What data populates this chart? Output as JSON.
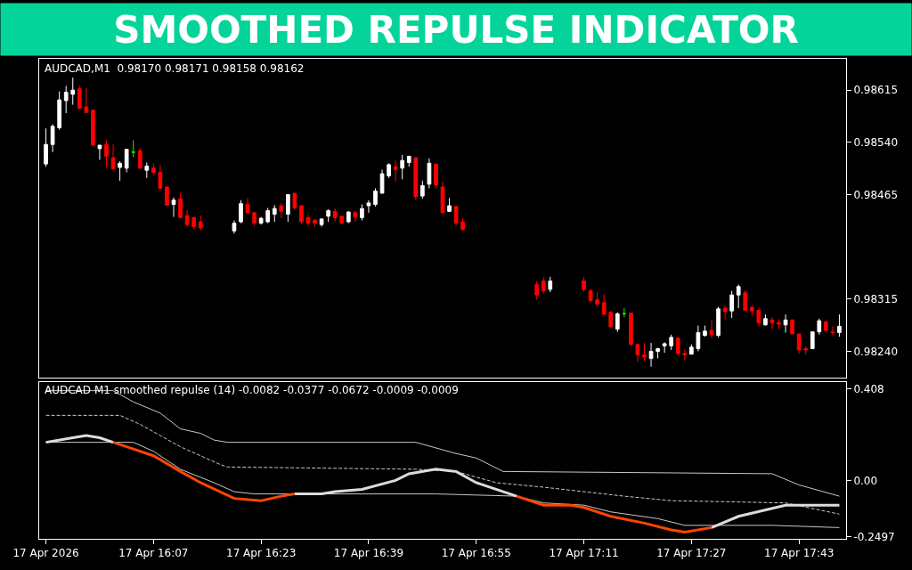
{
  "chart_data": [
    {
      "type": "candlestick",
      "title": "SMOOTHED REPULSE INDICATOR",
      "annotations": [
        "AUDCAD,M1  0.98170 0.98171 0.98158 0.98162"
      ],
      "x": [
        "2026-04-17T15:51",
        "2026-04-17T15:52",
        "2026-04-17T15:53",
        "2026-04-17T15:54",
        "2026-04-17T15:55",
        "2026-04-17T15:56",
        "2026-04-17T15:57",
        "2026-04-17T15:58",
        "2026-04-17T15:59",
        "2026-04-17T16:00",
        "2026-04-17T16:01",
        "2026-04-17T16:02",
        "2026-04-17T16:03",
        "2026-04-17T16:04",
        "2026-04-17T16:05",
        "2026-04-17T16:06",
        "2026-04-17T16:07",
        "2026-04-17T16:08",
        "2026-04-17T16:09",
        "2026-04-17T16:10",
        "2026-04-17T16:11",
        "2026-04-17T16:12",
        "2026-04-17T16:13",
        "2026-04-17T16:14",
        "2026-04-17T16:19",
        "2026-04-17T16:20",
        "2026-04-17T16:21",
        "2026-04-17T16:22",
        "2026-04-17T16:23",
        "2026-04-17T16:24",
        "2026-04-17T16:25",
        "2026-04-17T16:26",
        "2026-04-17T16:27",
        "2026-04-17T16:28",
        "2026-04-17T16:29",
        "2026-04-17T16:30",
        "2026-04-17T16:31",
        "2026-04-17T16:32",
        "2026-04-17T16:33",
        "2026-04-17T16:34",
        "2026-04-17T16:35",
        "2026-04-17T16:36",
        "2026-04-17T16:37",
        "2026-04-17T16:38",
        "2026-04-17T16:39",
        "2026-04-17T16:40",
        "2026-04-17T16:41",
        "2026-04-17T16:42",
        "2026-04-17T16:43",
        "2026-04-17T16:44",
        "2026-04-17T16:45",
        "2026-04-17T16:46",
        "2026-04-17T16:47",
        "2026-04-17T16:48",
        "2026-04-17T16:49",
        "2026-04-17T16:50",
        "2026-04-17T16:51",
        "2026-04-17T16:52",
        "2026-04-17T16:53",
        "2026-04-17T17:04",
        "2026-04-17T17:05",
        "2026-04-17T17:06",
        "2026-04-17T17:11",
        "2026-04-17T17:12",
        "2026-04-17T17:13",
        "2026-04-17T17:14",
        "2026-04-17T17:15",
        "2026-04-17T17:16",
        "2026-04-17T17:17",
        "2026-04-17T17:18",
        "2026-04-17T17:19",
        "2026-04-17T17:20",
        "2026-04-17T17:21",
        "2026-04-17T17:22",
        "2026-04-17T17:23",
        "2026-04-17T17:24",
        "2026-04-17T17:25",
        "2026-04-17T17:26",
        "2026-04-17T17:27",
        "2026-04-17T17:28",
        "2026-04-17T17:29",
        "2026-04-17T17:30",
        "2026-04-17T17:31",
        "2026-04-17T17:32",
        "2026-04-17T17:33",
        "2026-04-17T17:34",
        "2026-04-17T17:35",
        "2026-04-17T17:36",
        "2026-04-17T17:37",
        "2026-04-17T17:38",
        "2026-04-17T17:39",
        "2026-04-17T17:40",
        "2026-04-17T17:41",
        "2026-04-17T17:42",
        "2026-04-17T17:43",
        "2026-04-17T17:44",
        "2026-04-17T17:45",
        "2026-04-17T17:46",
        "2026-04-17T17:47",
        "2026-04-17T17:48",
        "2026-04-17T17:49"
      ],
      "ohlc": [
        [
          0.98509,
          0.9856,
          0.98505,
          0.98537
        ],
        [
          0.98537,
          0.98566,
          0.98526,
          0.98563
        ],
        [
          0.98561,
          0.98613,
          0.98558,
          0.98601
        ],
        [
          0.986,
          0.98621,
          0.98582,
          0.98612
        ],
        [
          0.98609,
          0.98633,
          0.98594,
          0.98615
        ],
        [
          0.98617,
          0.98621,
          0.98588,
          0.98589
        ],
        [
          0.98591,
          0.98618,
          0.98583,
          0.98583
        ],
        [
          0.98586,
          0.98588,
          0.98536,
          0.98536
        ],
        [
          0.98531,
          0.98536,
          0.98515,
          0.98536
        ],
        [
          0.98537,
          0.98543,
          0.98504,
          0.9852
        ],
        [
          0.98518,
          0.98537,
          0.98502,
          0.98502
        ],
        [
          0.98504,
          0.98513,
          0.98485,
          0.9851
        ],
        [
          0.98503,
          0.9853,
          0.98497,
          0.9853
        ],
        [
          0.98526,
          0.98543,
          0.98519,
          0.98526
        ],
        [
          0.98528,
          0.98532,
          0.98502,
          0.98503
        ],
        [
          0.985,
          0.98511,
          0.98489,
          0.98506
        ],
        [
          0.98503,
          0.9851,
          0.98493,
          0.98497
        ],
        [
          0.98497,
          0.98508,
          0.98474,
          0.98474
        ],
        [
          0.98476,
          0.98476,
          0.9845,
          0.9845
        ],
        [
          0.98451,
          0.98461,
          0.98433,
          0.98457
        ],
        [
          0.98459,
          0.98468,
          0.98432,
          0.98432
        ],
        [
          0.98435,
          0.98443,
          0.98419,
          0.98422
        ],
        [
          0.98432,
          0.98434,
          0.98415,
          0.98419
        ],
        [
          0.98426,
          0.98435,
          0.98413,
          0.98417
        ],
        [
          0.98413,
          0.98428,
          0.98409,
          0.98424
        ],
        [
          0.98426,
          0.98457,
          0.98424,
          0.98452
        ],
        [
          0.98451,
          0.9846,
          0.98437,
          0.98439
        ],
        [
          0.98439,
          0.98439,
          0.9842,
          0.98424
        ],
        [
          0.98424,
          0.98433,
          0.98422,
          0.98431
        ],
        [
          0.98426,
          0.98446,
          0.98424,
          0.98442
        ],
        [
          0.98437,
          0.9845,
          0.98426,
          0.98445
        ],
        [
          0.98449,
          0.98453,
          0.98431,
          0.98441
        ],
        [
          0.98437,
          0.98465,
          0.98426,
          0.98465
        ],
        [
          0.98467,
          0.98467,
          0.98443,
          0.98446
        ],
        [
          0.98449,
          0.9845,
          0.98423,
          0.98426
        ],
        [
          0.98432,
          0.98436,
          0.9842,
          0.98424
        ],
        [
          0.98428,
          0.9843,
          0.98419,
          0.98424
        ],
        [
          0.98422,
          0.98431,
          0.98419,
          0.9843
        ],
        [
          0.98434,
          0.98444,
          0.98426,
          0.98442
        ],
        [
          0.98441,
          0.98446,
          0.98426,
          0.98432
        ],
        [
          0.98434,
          0.98434,
          0.98422,
          0.98424
        ],
        [
          0.98426,
          0.98441,
          0.98424,
          0.9844
        ],
        [
          0.98439,
          0.98442,
          0.98426,
          0.98433
        ],
        [
          0.98432,
          0.98451,
          0.98428,
          0.98445
        ],
        [
          0.98449,
          0.98457,
          0.98439,
          0.98453
        ],
        [
          0.98451,
          0.98474,
          0.98448,
          0.9847
        ],
        [
          0.98467,
          0.98501,
          0.98467,
          0.98495
        ],
        [
          0.98492,
          0.9851,
          0.98489,
          0.98508
        ],
        [
          0.98505,
          0.98514,
          0.98484,
          0.98501
        ],
        [
          0.98503,
          0.98522,
          0.98487,
          0.98514
        ],
        [
          0.98511,
          0.98521,
          0.98505,
          0.9852
        ],
        [
          0.98518,
          0.98518,
          0.98457,
          0.98462
        ],
        [
          0.98463,
          0.98485,
          0.98459,
          0.98478
        ],
        [
          0.9848,
          0.98517,
          0.98474,
          0.9851
        ],
        [
          0.98509,
          0.98509,
          0.98474,
          0.98479
        ],
        [
          0.98476,
          0.98484,
          0.98439,
          0.98439
        ],
        [
          0.98441,
          0.9846,
          0.9844,
          0.98449
        ],
        [
          0.98448,
          0.98448,
          0.9842,
          0.98424
        ],
        [
          0.98426,
          0.98431,
          0.98413,
          0.98415
        ],
        [
          0.98336,
          0.98341,
          0.98314,
          0.98321
        ],
        [
          0.98341,
          0.98347,
          0.98323,
          0.98327
        ],
        [
          0.98329,
          0.98347,
          0.98325,
          0.98341
        ],
        [
          0.98341,
          0.98347,
          0.98325,
          0.98329
        ],
        [
          0.98327,
          0.9833,
          0.9831,
          0.98313
        ],
        [
          0.98314,
          0.98325,
          0.98305,
          0.98308
        ],
        [
          0.9831,
          0.98322,
          0.98293,
          0.98293
        ],
        [
          0.98296,
          0.98298,
          0.98275,
          0.98275
        ],
        [
          0.98272,
          0.98296,
          0.98268,
          0.98294
        ],
        [
          0.98294,
          0.98302,
          0.98289,
          0.98294
        ],
        [
          0.98295,
          0.98295,
          0.98248,
          0.9825
        ],
        [
          0.9825,
          0.9825,
          0.98225,
          0.98235
        ],
        [
          0.98235,
          0.98252,
          0.98226,
          0.98232
        ],
        [
          0.9823,
          0.98252,
          0.98218,
          0.9824
        ],
        [
          0.9824,
          0.98245,
          0.9823,
          0.98244
        ],
        [
          0.98248,
          0.98253,
          0.98238,
          0.98251
        ],
        [
          0.98248,
          0.98264,
          0.98242,
          0.9826
        ],
        [
          0.98259,
          0.9826,
          0.98235,
          0.98237
        ],
        [
          0.98237,
          0.98243,
          0.98227,
          0.98235
        ],
        [
          0.98236,
          0.9825,
          0.98236,
          0.98246
        ],
        [
          0.98244,
          0.98277,
          0.9824,
          0.98267
        ],
        [
          0.98263,
          0.98277,
          0.98261,
          0.98269
        ],
        [
          0.9827,
          0.98285,
          0.98259,
          0.98264
        ],
        [
          0.98263,
          0.98304,
          0.9826,
          0.98301
        ],
        [
          0.98302,
          0.98306,
          0.98286,
          0.98297
        ],
        [
          0.98298,
          0.98327,
          0.98288,
          0.98321
        ],
        [
          0.98321,
          0.98336,
          0.98302,
          0.98333
        ],
        [
          0.98324,
          0.98328,
          0.98298,
          0.98299
        ],
        [
          0.98303,
          0.98307,
          0.9829,
          0.98298
        ],
        [
          0.98299,
          0.98303,
          0.98276,
          0.98281
        ],
        [
          0.98278,
          0.98293,
          0.98277,
          0.98287
        ],
        [
          0.98285,
          0.98289,
          0.98272,
          0.98281
        ],
        [
          0.98281,
          0.98286,
          0.98272,
          0.98279
        ],
        [
          0.98278,
          0.98293,
          0.98267,
          0.98285
        ],
        [
          0.98285,
          0.98286,
          0.98265,
          0.98265
        ],
        [
          0.98265,
          0.98265,
          0.98237,
          0.98242
        ],
        [
          0.98244,
          0.98247,
          0.98236,
          0.98242
        ],
        [
          0.98244,
          0.98268,
          0.98243,
          0.98268
        ],
        [
          0.98268,
          0.98287,
          0.98264,
          0.98284
        ],
        [
          0.98282,
          0.98285,
          0.98269,
          0.9827
        ],
        [
          0.98268,
          0.98276,
          0.98264,
          0.98267
        ],
        [
          0.98267,
          0.98293,
          0.98261,
          0.98276
        ]
      ],
      "colors": [
        "#ffffff",
        "#ffffff",
        "#ffffff",
        "#ffffff",
        "#ffffff",
        "#ff0000",
        "#ff0000",
        "#ff0000",
        "#ffffff",
        "#ff0000",
        "#ff0000",
        "#ffffff",
        "#ffffff",
        "#00ff00",
        "#ff0000",
        "#ffffff",
        "#ff0000",
        "#ff0000",
        "#ff0000",
        "#ffffff",
        "#ff0000",
        "#ff0000",
        "#ff0000",
        "#ff0000",
        "#ffffff",
        "#ffffff",
        "#ff0000",
        "#ff0000",
        "#ffffff",
        "#ffffff",
        "#ffffff",
        "#ff0000",
        "#ffffff",
        "#ff0000",
        "#ff0000",
        "#ff0000",
        "#ff0000",
        "#ffffff",
        "#ffffff",
        "#ff0000",
        "#ff0000",
        "#ffffff",
        "#ff0000",
        "#ffffff",
        "#ffffff",
        "#ffffff",
        "#ffffff",
        "#ffffff",
        "#ff0000",
        "#ffffff",
        "#ffffff",
        "#ff0000",
        "#ffffff",
        "#ffffff",
        "#ff0000",
        "#ff0000",
        "#ffffff",
        "#ff0000",
        "#ff0000",
        "#ff0000",
        "#ff0000",
        "#ffffff",
        "#ff0000",
        "#ff0000",
        "#ff0000",
        "#ff0000",
        "#ff0000",
        "#ffffff",
        "#00ff00",
        "#ff0000",
        "#ff0000",
        "#ff0000",
        "#ffffff",
        "#ffffff",
        "#ffffff",
        "#ffffff",
        "#ff0000",
        "#ff0000",
        "#ffffff",
        "#ffffff",
        "#ffffff",
        "#ff0000",
        "#ffffff",
        "#ff0000",
        "#ffffff",
        "#ffffff",
        "#ff0000",
        "#ff0000",
        "#ff0000",
        "#ffffff",
        "#ff0000",
        "#ff0000",
        "#ffffff",
        "#ff0000",
        "#ff0000",
        "#ff0000",
        "#ffffff",
        "#ffffff",
        "#ff0000",
        "#ff0000",
        "#ffffff"
      ],
      "xlim": [
        "2026-04-17T15:50",
        "2026-04-17T17:50"
      ],
      "ylim": [
        0.98202,
        0.9866
      ],
      "yticks": [
        0.98615,
        {
          "value": 0.9854,
          "label": "0.98540"
        },
        0.98465,
        0.98315,
        {
          "value": 0.9824,
          "label": "0.98240"
        }
      ],
      "tick_labels": "y",
      "grid": false
    },
    {
      "type": "line",
      "annotations": [
        "AUDCAD M1 smoothed repulse (14) -0.0082 -0.0377 -0.0672 -0.0009 -0.0009"
      ],
      "series": [
        {
          "color": "#c8c8c8",
          "x": [
            "2026-04-17T15:51",
            "2026-04-17T16:01",
            "2026-04-17T16:04",
            "2026-04-17T16:08",
            "2026-04-17T16:11",
            "2026-04-17T16:14",
            "2026-04-17T16:16",
            "2026-04-17T16:18",
            "2026-04-17T16:46",
            "2026-04-17T16:52",
            "2026-04-17T16:55",
            "2026-04-17T16:59",
            "2026-04-17T17:39",
            "2026-04-17T17:43",
            "2026-04-17T17:49"
          ],
          "values": [
            0.4,
            0.4,
            0.35,
            0.3,
            0.23,
            0.21,
            0.18,
            0.17,
            0.17,
            0.12,
            0.1,
            0.04,
            0.03,
            -0.02,
            -0.07
          ]
        },
        {
          "color": "#c8c8c8",
          "line_style": "dashed",
          "x": [
            "2026-04-17T15:51",
            "2026-04-17T16:02",
            "2026-04-17T16:05",
            "2026-04-17T16:08",
            "2026-04-17T16:11",
            "2026-04-17T16:14",
            "2026-04-17T16:17",
            "2026-04-17T16:18",
            "2026-04-17T16:46",
            "2026-04-17T16:52",
            "2026-04-17T16:58",
            "2026-04-17T17:05",
            "2026-04-17T17:17",
            "2026-04-17T17:24",
            "2026-04-17T17:41",
            "2026-04-17T17:49"
          ],
          "values": [
            0.29,
            0.29,
            0.25,
            0.2,
            0.15,
            0.11,
            0.07,
            0.06,
            0.05,
            0.04,
            -0.01,
            -0.03,
            -0.07,
            -0.09,
            -0.1,
            -0.15
          ]
        },
        {
          "color": "#c8c8c8",
          "x": [
            "2026-04-17T15:51",
            "2026-04-17T16:04",
            "2026-04-17T16:07",
            "2026-04-17T16:11",
            "2026-04-17T16:16",
            "2026-04-17T16:19",
            "2026-04-17T16:22",
            "2026-04-17T16:49",
            "2026-04-17T17:01",
            "2026-04-17T17:05",
            "2026-04-17T17:11",
            "2026-04-17T17:15",
            "2026-04-17T17:22",
            "2026-04-17T17:26",
            "2026-04-17T17:39",
            "2026-04-17T17:49"
          ],
          "values": [
            0.17,
            0.17,
            0.13,
            0.05,
            -0.01,
            -0.05,
            -0.06,
            -0.06,
            -0.07,
            -0.1,
            -0.11,
            -0.14,
            -0.17,
            -0.2,
            -0.2,
            -0.21
          ]
        },
        {
          "color": "#dcdcdc",
          "x": [
            "2026-04-17T15:51",
            "2026-04-17T15:55",
            "2026-04-17T15:57",
            "2026-04-17T15:59",
            "2026-04-17T16:01",
            "2026-04-17T16:04",
            "2026-04-17T16:07",
            "2026-04-17T16:11",
            "2026-04-17T16:14",
            "2026-04-17T16:19",
            "2026-04-17T16:23",
            "2026-04-17T16:26",
            "2026-04-17T16:28",
            "2026-04-17T16:32",
            "2026-04-17T16:34",
            "2026-04-17T16:38",
            "2026-04-17T16:43",
            "2026-04-17T16:45",
            "2026-04-17T16:49",
            "2026-04-17T16:52",
            "2026-04-17T16:55",
            "2026-04-17T17:01",
            "2026-04-17T17:05",
            "2026-04-17T17:09",
            "2026-04-17T17:11",
            "2026-04-17T17:15",
            "2026-04-17T17:20",
            "2026-04-17T17:24",
            "2026-04-17T17:26",
            "2026-04-17T17:30",
            "2026-04-17T17:34",
            "2026-04-17T17:41",
            "2026-04-17T17:43",
            "2026-04-17T17:49"
          ],
          "values": [
            0.17,
            0.19,
            0.2,
            0.19,
            0.17,
            null,
            null,
            null,
            null,
            null,
            null,
            null,
            -0.06,
            -0.06,
            -0.05,
            -0.04,
            0.0,
            0.03,
            0.05,
            0.04,
            -0.01,
            -0.07,
            null,
            null,
            null,
            null,
            null,
            null,
            null,
            -0.21,
            -0.16,
            -0.11,
            -0.11,
            -0.11
          ]
        },
        {
          "color": "#ff4500",
          "x": [
            "2026-04-17T16:01",
            "2026-04-17T16:04",
            "2026-04-17T16:07",
            "2026-04-17T16:11",
            "2026-04-17T16:14",
            "2026-04-17T16:19",
            "2026-04-17T16:23",
            "2026-04-17T16:26",
            "2026-04-17T16:28",
            "2026-04-17T16:32",
            "2026-04-17T16:34",
            "2026-04-17T16:38",
            "2026-04-17T16:43",
            "2026-04-17T16:45",
            "2026-04-17T16:49",
            "2026-04-17T16:52",
            "2026-04-17T16:55",
            "2026-04-17T17:01",
            "2026-04-17T17:05",
            "2026-04-17T17:09",
            "2026-04-17T17:11",
            "2026-04-17T17:15",
            "2026-04-17T17:20",
            "2026-04-17T17:24",
            "2026-04-17T17:26",
            "2026-04-17T17:30"
          ],
          "values": [
            0.17,
            0.14,
            0.11,
            0.04,
            -0.01,
            -0.08,
            -0.09,
            -0.07,
            -0.06,
            null,
            null,
            null,
            null,
            null,
            null,
            null,
            null,
            -0.07,
            -0.11,
            -0.11,
            -0.12,
            -0.16,
            -0.19,
            -0.22,
            -0.23,
            -0.21
          ]
        }
      ],
      "xlim": [
        "2026-04-17T15:50",
        "2026-04-17T17:50"
      ],
      "xticks": [
        {
          "value": "2026-04-17T15:51",
          "label": "17 Apr 2026"
        },
        {
          "value": "2026-04-17T16:07",
          "label": "17 Apr 16:07"
        },
        {
          "value": "2026-04-17T16:23",
          "label": "17 Apr 16:23"
        },
        {
          "value": "2026-04-17T16:39",
          "label": "17 Apr 16:39"
        },
        {
          "value": "2026-04-17T16:55",
          "label": "17 Apr 16:55"
        },
        {
          "value": "2026-04-17T17:11",
          "label": "17 Apr 17:11"
        },
        {
          "value": "2026-04-17T17:27",
          "label": "17 Apr 17:27"
        },
        {
          "value": "2026-04-17T17:43",
          "label": "17 Apr 17:43"
        }
      ],
      "ylim": [
        -0.26,
        0.44
      ],
      "yticks": [
        0.408,
        {
          "value": 0,
          "label": "0.00"
        },
        -0.2497
      ],
      "grid": false,
      "marker": "none"
    }
  ]
}
